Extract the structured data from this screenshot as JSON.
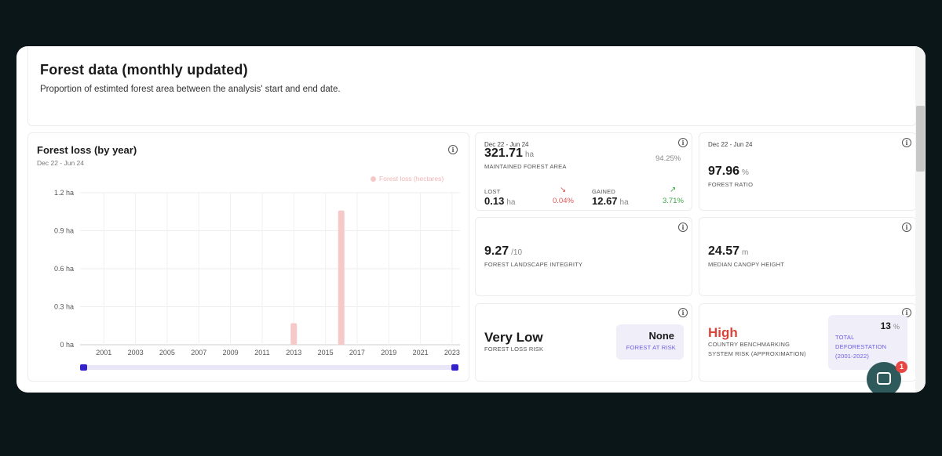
{
  "header": {
    "title": "Forest data (monthly updated)",
    "subtitle": "Proportion of estimted forest area between the analysis' start and end date."
  },
  "forest_loss_card": {
    "title": "Forest loss (by year)",
    "date_range": "Dec 22 - Jun 24",
    "info_icon": "info-icon"
  },
  "chart_data": {
    "type": "bar",
    "title": "Forest loss (by year)",
    "series": [
      {
        "name": "Forest loss (hectares)",
        "color": "#f6c9c9",
        "values": [
          {
            "x": 2013,
            "y": 0.17
          },
          {
            "x": 2016,
            "y": 1.06
          }
        ]
      }
    ],
    "x_ticks": [
      "2001",
      "2003",
      "2005",
      "2007",
      "2009",
      "2011",
      "2013",
      "2015",
      "2017",
      "2019",
      "2021",
      "2023"
    ],
    "y_ticks": [
      "0 ha",
      "0.3 ha",
      "0.6 ha",
      "0.9 ha",
      "1.2 ha"
    ],
    "xlim": [
      1999.5,
      2023.5
    ],
    "ylim": [
      0,
      1.2
    ],
    "grid": true,
    "legend_position": "top-right"
  },
  "maintained": {
    "date_range": "Dec 22 - Jun 24",
    "value": "321.71",
    "unit": "ha",
    "label": "MAINTAINED FOREST AREA",
    "percent": "94.25%",
    "lost_label": "LOST",
    "lost_value": "0.13",
    "lost_unit": "ha",
    "lost_percent": "0.04%",
    "gained_label": "GAINED",
    "gained_value": "12.67",
    "gained_unit": "ha",
    "gained_percent": "3.71%",
    "down_color": "#e05555",
    "up_color": "#3aa845"
  },
  "forest_ratio": {
    "date_range": "Dec 22 - Jun 24",
    "value": "97.96",
    "unit": "%",
    "label": "FOREST RATIO"
  },
  "landscape_integrity": {
    "value": "9.27",
    "unit": "/10",
    "label": "FOREST LANDSCAPE INTEGRITY"
  },
  "canopy": {
    "value": "24.57",
    "unit": "m",
    "label": "MEDIAN CANOPY HEIGHT"
  },
  "loss_risk": {
    "value": "Very Low",
    "label": "FOREST LOSS RISK",
    "badge_value": "None",
    "badge_label": "FOREST AT RISK",
    "badge_label_color": "#6b5ce7"
  },
  "country_risk": {
    "value": "High",
    "value_color": "#d9453b",
    "label_line1": "COUNTRY BENCHMARKING",
    "label_line2": "SYSTEM RISK (APPROXIMATION)",
    "badge_value": "13",
    "badge_unit": "%",
    "badge_line1": "TOTAL",
    "badge_line2": "DEFORESTATION",
    "badge_line3": "(2001-2022)",
    "badge_label_color": "#6b5ce7"
  },
  "chat": {
    "icon": "chat-icon",
    "count": "1"
  }
}
